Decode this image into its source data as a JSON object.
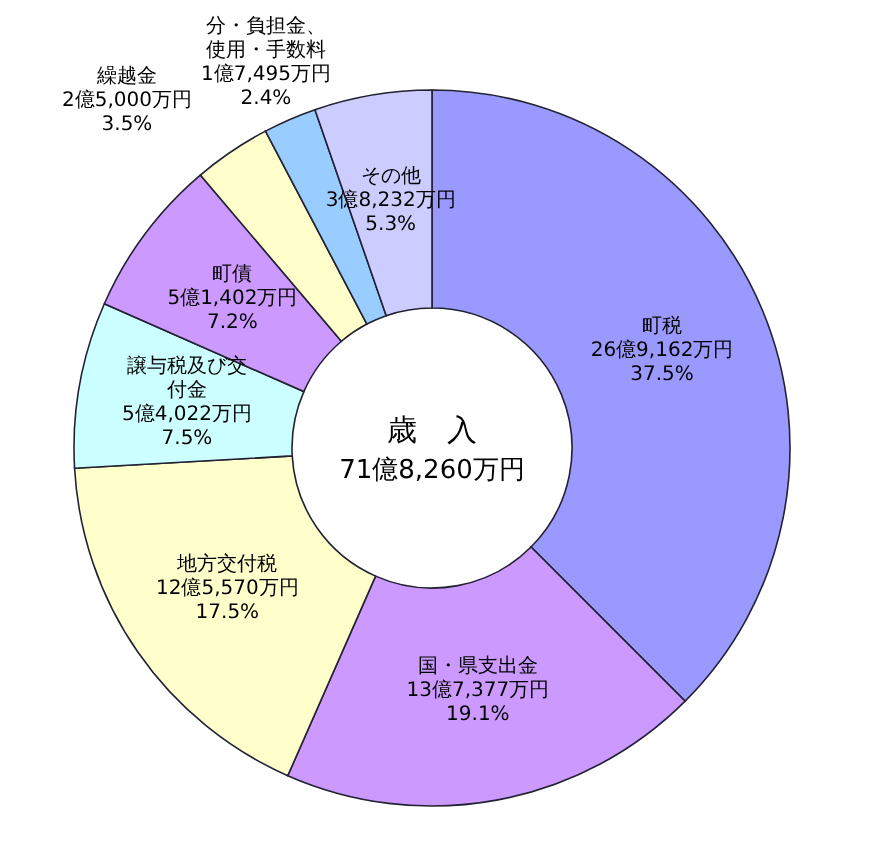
{
  "chart_data": {
    "type": "donut",
    "title": "歳　入",
    "subtitle": "71億8,260万円",
    "categories": [
      "町税",
      "国・県支出金",
      "地方交付税",
      "譲与税及び交付金",
      "町債",
      "繰越金",
      "分・負担金、使用・手数料",
      "その他"
    ],
    "values": [
      37.5,
      19.1,
      17.5,
      7.5,
      7.2,
      3.5,
      2.4,
      5.3
    ],
    "value_labels": [
      "26億9,162万円\n37.5%",
      "13億7,377万円\n19.1%",
      "12億5,570万円\n17.5%",
      "5億4,022万円\n7.5%",
      "5億1,402万円\n7.2%",
      "2億5,000万円\n3.5%",
      "1億7,495万円\n2.4%",
      "3億8,232万円\n5.3%"
    ],
    "colors": [
      "#9999ff",
      "#cc99ff",
      "#ffffcc",
      "#ccffff",
      "#cc99ff",
      "#ffffcc",
      "#99ccff",
      "#ccccff"
    ]
  }
}
